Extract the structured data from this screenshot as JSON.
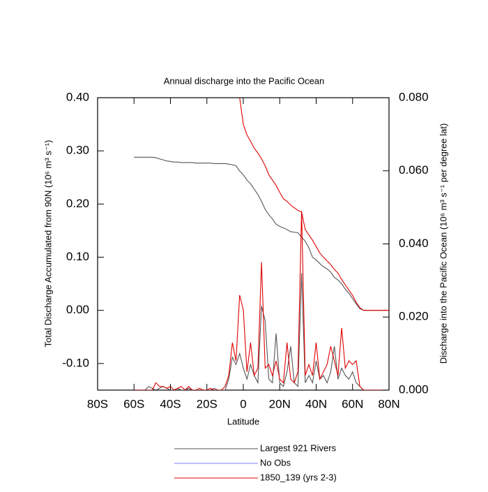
{
  "chart_data": {
    "type": "line",
    "title": "Annual discharge into the Pacific Ocean",
    "x_label": "Latitude",
    "y_label": "Total Discharge Accumulated from 90N (10⁶ m³ s⁻¹)",
    "y2_label": "Discharge into the Pacific Ocean (10⁶ m³ s⁻¹ per degree lat)",
    "xlim": [
      -80,
      80
    ],
    "xticks": [
      {
        "value": -80,
        "label": "80S"
      },
      {
        "value": -60,
        "label": "60S"
      },
      {
        "value": -40,
        "label": "40S"
      },
      {
        "value": -20,
        "label": "20S"
      },
      0,
      {
        "value": 20,
        "label": "20N"
      },
      {
        "value": 40,
        "label": "40N"
      },
      {
        "value": 60,
        "label": "60N"
      },
      {
        "value": 80,
        "label": "80N"
      }
    ],
    "ylim": [
      -0.15,
      0.4
    ],
    "yticks": [
      {
        "value": -0.1,
        "label": "-0.10"
      },
      {
        "value": 0,
        "label": "0.00"
      },
      {
        "value": 0.1,
        "label": "0.10"
      },
      {
        "value": 0.2,
        "label": "0.20"
      },
      {
        "value": 0.3,
        "label": "0.30"
      },
      {
        "value": 0.4,
        "label": "0.40"
      }
    ],
    "y2lim": [
      0,
      0.08
    ],
    "y2ticks": [
      {
        "value": 0,
        "label": "0.000"
      },
      {
        "value": 0.02,
        "label": "0.020"
      },
      {
        "value": 0.04,
        "label": "0.040"
      },
      {
        "value": 0.06,
        "label": "0.060"
      },
      {
        "value": 0.08,
        "label": "0.080"
      }
    ],
    "x": [
      -60,
      -58,
      -56,
      -54,
      -52,
      -50,
      -48,
      -46,
      -44,
      -42,
      -40,
      -38,
      -36,
      -34,
      -32,
      -30,
      -28,
      -26,
      -24,
      -22,
      -20,
      -18,
      -16,
      -14,
      -12,
      -10,
      -8,
      -6,
      -4,
      -2,
      0,
      2,
      4,
      6,
      8,
      10,
      12,
      14,
      16,
      18,
      20,
      22,
      24,
      26,
      28,
      30,
      32,
      34,
      36,
      38,
      40,
      42,
      44,
      46,
      48,
      50,
      52,
      54,
      56,
      58,
      60,
      62,
      64,
      66,
      68,
      70,
      72,
      74,
      76,
      78,
      80
    ],
    "series": [
      {
        "name": "Largest 921 Rivers",
        "color": "#555555",
        "values": [
          0.288,
          0.288,
          0.288,
          0.288,
          0.288,
          0.288,
          0.287,
          0.285,
          0.283,
          0.281,
          0.28,
          0.279,
          0.279,
          0.278,
          0.278,
          0.278,
          0.278,
          0.277,
          0.277,
          0.277,
          0.277,
          0.277,
          0.276,
          0.276,
          0.276,
          0.276,
          0.275,
          0.274,
          0.272,
          0.262,
          0.255,
          0.245,
          0.238,
          0.228,
          0.218,
          0.205,
          0.19,
          0.18,
          0.172,
          0.162,
          0.158,
          0.155,
          0.152,
          0.148,
          0.147,
          0.146,
          0.138,
          0.13,
          0.118,
          0.1,
          0.095,
          0.088,
          0.082,
          0.078,
          0.072,
          0.062,
          0.057,
          0.05,
          0.04,
          0.032,
          0.022,
          0.012,
          0.003,
          0,
          0,
          0,
          0,
          0,
          0,
          0,
          0
        ],
        "y2_values": [
          0,
          0,
          0,
          0,
          0.001,
          0.0005,
          0,
          0.0005,
          0.001,
          0.0005,
          0,
          0,
          0.0005,
          0,
          0,
          0.0005,
          0,
          0,
          0,
          0,
          0,
          0,
          0.0005,
          0,
          0,
          0,
          0.003,
          0.009,
          0.007,
          0.01,
          0.006,
          0.003,
          0.007,
          0.004,
          0.002,
          0.023,
          0.019,
          0.003,
          0.002,
          0.0155,
          0.002,
          0.001,
          0.005,
          0.012,
          0.002,
          0.001,
          0.032,
          0.002,
          0.004,
          0.002,
          0.008,
          0.003,
          0.004,
          0.002,
          0.005,
          0.012,
          0.003,
          0.006,
          0.004,
          0.003,
          0.005,
          0.002,
          0.001,
          0,
          0,
          0,
          0,
          0,
          0,
          0,
          0
        ]
      },
      {
        "name": "No Obs",
        "color": "#7f7fff",
        "values": [
          null,
          null,
          null,
          null,
          null,
          null,
          null,
          null,
          null,
          null,
          null,
          null,
          null,
          null,
          null,
          null,
          null,
          null,
          null,
          null,
          null,
          null,
          null,
          null,
          null,
          null,
          null,
          null,
          null,
          null,
          null,
          null,
          null,
          null,
          null,
          null,
          null,
          null,
          null,
          null,
          null,
          null,
          null,
          null,
          null,
          null,
          null,
          null,
          null,
          null,
          null,
          null,
          null,
          null,
          null,
          null,
          null,
          null,
          null,
          null,
          null,
          null,
          null,
          null,
          null,
          null,
          null,
          null,
          null,
          null,
          null
        ]
      },
      {
        "name": "1850_139 (yrs 2-3)",
        "color": "#e00000",
        "values": [
          null,
          null,
          null,
          null,
          null,
          null,
          null,
          null,
          null,
          null,
          null,
          null,
          null,
          null,
          null,
          null,
          null,
          null,
          null,
          null,
          null,
          null,
          null,
          null,
          null,
          null,
          null,
          null,
          null,
          0.4,
          0.35,
          0.33,
          0.318,
          0.305,
          0.296,
          0.285,
          0.272,
          0.255,
          0.245,
          0.235,
          0.222,
          0.21,
          0.205,
          0.198,
          0.193,
          0.188,
          0.185,
          0.152,
          0.142,
          0.132,
          0.12,
          0.108,
          0.1,
          0.093,
          0.086,
          0.077,
          0.07,
          0.058,
          0.048,
          0.038,
          0.028,
          0.015,
          0.005,
          0,
          0,
          0,
          0,
          0,
          0,
          0,
          0
        ],
        "y2_values": [
          0,
          0,
          0,
          0,
          0,
          0,
          0.002,
          0.001,
          0.001,
          0.0005,
          0.001,
          0,
          0.0005,
          0.001,
          0,
          0.001,
          0,
          0,
          0.0005,
          0,
          0,
          0.0005,
          0,
          0,
          0,
          0.001,
          0.004,
          0.013,
          0.008,
          0.026,
          0.022,
          0.005,
          0.013,
          0.004,
          0.006,
          0.035,
          0.006,
          0.007,
          0.004,
          0.008,
          0.003,
          0.002,
          0.013,
          0.003,
          0.002,
          0.005,
          0.049,
          0.004,
          0.007,
          0.004,
          0.013,
          0.003,
          0.005,
          0.007,
          0.012,
          0.008,
          0.004,
          0.017,
          0.006,
          0.008,
          0.007,
          0.008,
          0.001,
          0,
          0,
          0,
          0,
          0,
          0,
          0,
          0
        ]
      }
    ]
  }
}
